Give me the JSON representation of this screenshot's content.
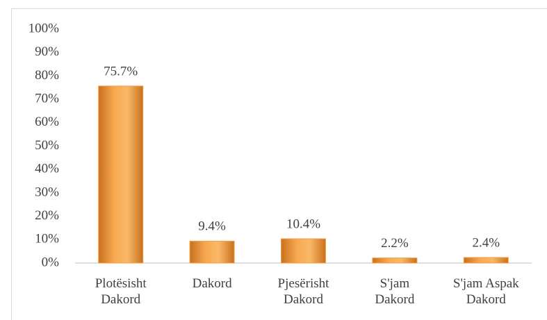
{
  "chart_data": {
    "type": "bar",
    "categories": [
      "Plotësisht Dakord",
      "Dakord",
      "Pjesërisht Dakord",
      "S'jam Dakord",
      "S'jam Aspak Dakord"
    ],
    "values": [
      75.7,
      9.4,
      10.4,
      2.2,
      2.4
    ],
    "value_labels": [
      "75.7%",
      "9.4%",
      "10.4%",
      "2.2%",
      "2.4%"
    ],
    "color": "#f5a04a",
    "ylim": [
      0,
      100
    ],
    "yticks": [
      {
        "value": 0,
        "label": "0%"
      },
      {
        "value": 10,
        "label": "10%"
      },
      {
        "value": 20,
        "label": "20%"
      },
      {
        "value": 30,
        "label": "30%"
      },
      {
        "value": 40,
        "label": "40%"
      },
      {
        "value": 50,
        "label": "50%"
      },
      {
        "value": 60,
        "label": "60%"
      },
      {
        "value": 70,
        "label": "70%"
      },
      {
        "value": 80,
        "label": "80%"
      },
      {
        "value": 90,
        "label": "90%"
      },
      {
        "value": 100,
        "label": "100%"
      }
    ],
    "grid": false
  }
}
